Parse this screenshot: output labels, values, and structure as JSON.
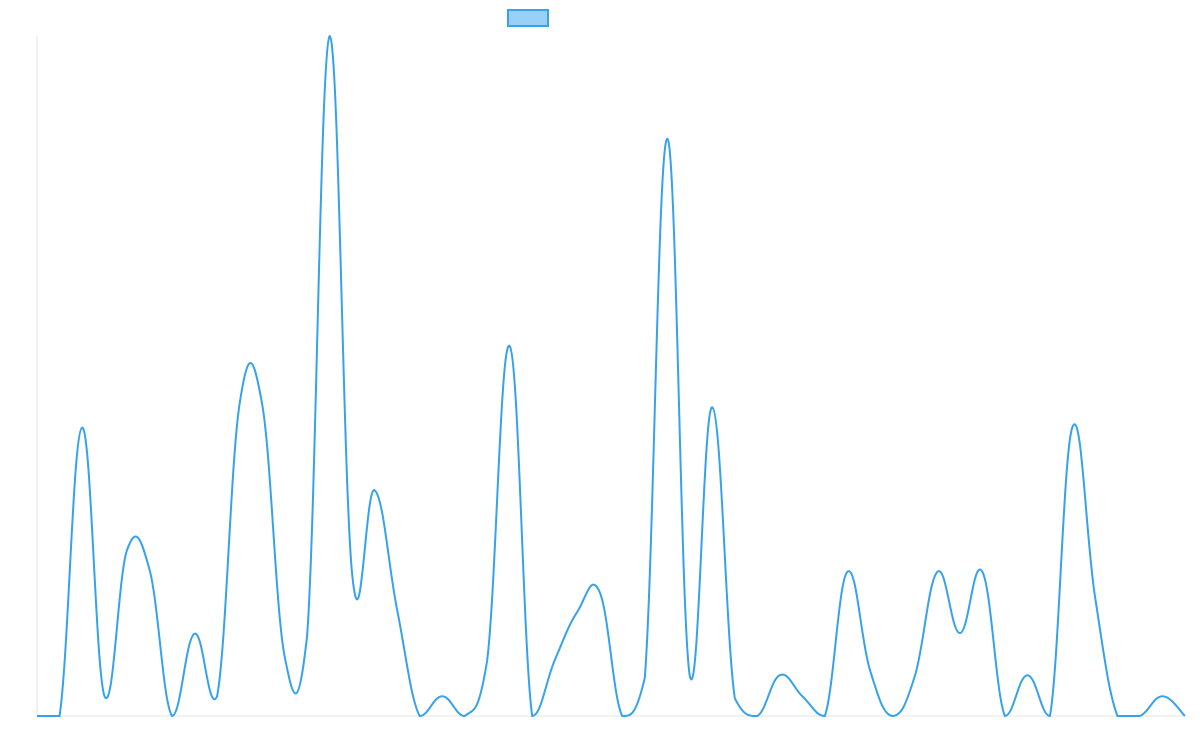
{
  "chart_data": {
    "type": "line",
    "categories": [
      null,
      null,
      null,
      null,
      null,
      null,
      null,
      null,
      null,
      null,
      null,
      null,
      null,
      null,
      null,
      null,
      null,
      null,
      null,
      null,
      null,
      null,
      null,
      null,
      null,
      null,
      null,
      null,
      null,
      null,
      null,
      null,
      null,
      null,
      null,
      null,
      null,
      null,
      null,
      null,
      null,
      null,
      null,
      null,
      null,
      null,
      null,
      null,
      null,
      null,
      null,
      null
    ],
    "series": [
      {
        "color": "#36a2eb",
        "fill": "#9ad0f5",
        "values": [
          0,
          0,
          42.4,
          2.9,
          24.4,
          21.5,
          0,
          12.1,
          2.9,
          45.9,
          45.9,
          8.8,
          11.8,
          100,
          20.9,
          33.2,
          15.6,
          0,
          2.9,
          0,
          8.2,
          54.4,
          0,
          8.2,
          15.3,
          18.2,
          0,
          5.6,
          84.9,
          5.9,
          45.4,
          2.6,
          0,
          6.0,
          2.9,
          0,
          21.2,
          6.8,
          0,
          5.9,
          21.2,
          12.2,
          21.2,
          0,
          6.0,
          0,
          42.5,
          17.6,
          0,
          0,
          2.9,
          0
        ]
      }
    ],
    "ylim": [
      0,
      100
    ],
    "legend": "top"
  }
}
